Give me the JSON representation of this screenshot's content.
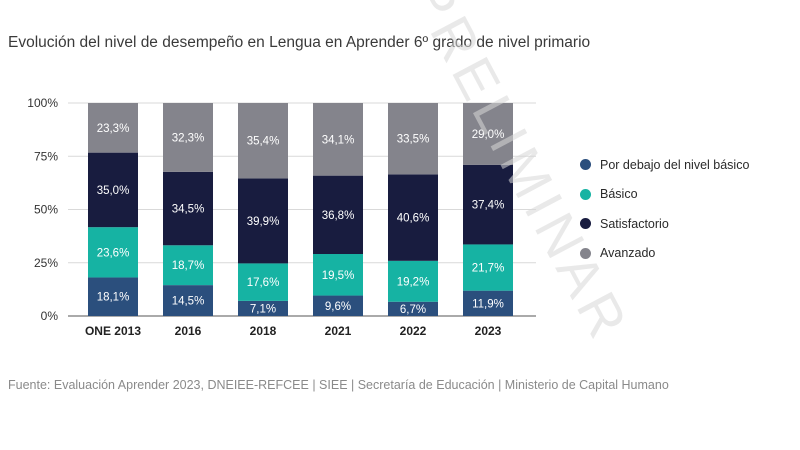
{
  "chart_data": {
    "type": "bar",
    "stacked": true,
    "title": "Evolución del nivel de desempeño en Lengua en Aprender 6º grado de nivel primario",
    "categories": [
      "ONE 2013",
      "2016",
      "2018",
      "2021",
      "2022",
      "2023"
    ],
    "ylim": [
      0,
      100
    ],
    "yticks": [
      "0%",
      "25%",
      "50%",
      "75%",
      "100%"
    ],
    "ytick_values": [
      0,
      25,
      50,
      75,
      100
    ],
    "legend_position": "right",
    "series": [
      {
        "name": "Por debajo del nivel básico",
        "color": "#2b4f7d",
        "values": [
          18.1,
          14.5,
          7.1,
          9.6,
          6.7,
          11.9
        ],
        "labels": [
          "18,1%",
          "14,5%",
          "7,1%",
          "9,6%",
          "6,7%",
          "11,9%"
        ],
        "label_color": "#ffffff"
      },
      {
        "name": "Básico",
        "color": "#16b3a3",
        "values": [
          23.6,
          18.7,
          17.6,
          19.5,
          19.2,
          21.7
        ],
        "labels": [
          "23,6%",
          "18,7%",
          "17,6%",
          "19,5%",
          "19,2%",
          "21,7%"
        ],
        "label_color": "#ffffff"
      },
      {
        "name": "Satisfactorio",
        "color": "#181c3f",
        "values": [
          35.0,
          34.5,
          39.9,
          36.8,
          40.6,
          37.4
        ],
        "labels": [
          "35,0%",
          "34,5%",
          "39,9%",
          "36,8%",
          "40,6%",
          "37,4%"
        ],
        "label_color": "#ffffff"
      },
      {
        "name": "Avanzado",
        "color": "#84848c",
        "values": [
          23.3,
          32.3,
          35.4,
          34.1,
          33.5,
          29.0
        ],
        "labels": [
          "23,3%",
          "32,3%",
          "35,4%",
          "34,1%",
          "33,5%",
          "29,0%"
        ],
        "label_color": "#ffffff"
      }
    ]
  },
  "watermark": "PRELIMINAR",
  "source": "Fuente: Evaluación Aprender 2023, DNEIEE-REFCEE | SIEE | Secretaría de Educación | Ministerio de Capital Humano"
}
